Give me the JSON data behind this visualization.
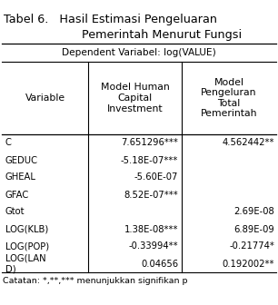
{
  "title_line1": "Tabel 6.   Hasil Estimasi Pengeluaran",
  "title_line2": "Pemerintah Menurut Fungsi",
  "subtitle": "Dependent Variabel: log(VALUE)",
  "col_headers": [
    "Variable",
    "Model Human\nCapital\nInvestment",
    "Model\nPengeluran\nTotal\nPemerintah"
  ],
  "rows": [
    [
      "C",
      "7.651296***",
      "4.562442**"
    ],
    [
      "GEDUC",
      "-5.18E-07***",
      ""
    ],
    [
      "GHEAL",
      "-5.60E-07",
      ""
    ],
    [
      "GFAC",
      "8.52E-07***",
      ""
    ],
    [
      "Gtot",
      "",
      "2.69E-08"
    ],
    [
      "LOG(KLB)",
      "1.38E-08***",
      "6.89E-09"
    ],
    [
      "LOG(POP)",
      "-0.33994**",
      "-0.21774*"
    ],
    [
      "LOG(LAN\nD)",
      "0.04656",
      "0.192002**"
    ]
  ],
  "footnote": "Catatan: *,**,*** menunjukkan signifikan p",
  "bg_color": "#ffffff",
  "text_color": "#000000",
  "font_size": 7.2,
  "title_font_size": 9.2,
  "header_font_size": 7.8,
  "subtitle_font_size": 7.6
}
